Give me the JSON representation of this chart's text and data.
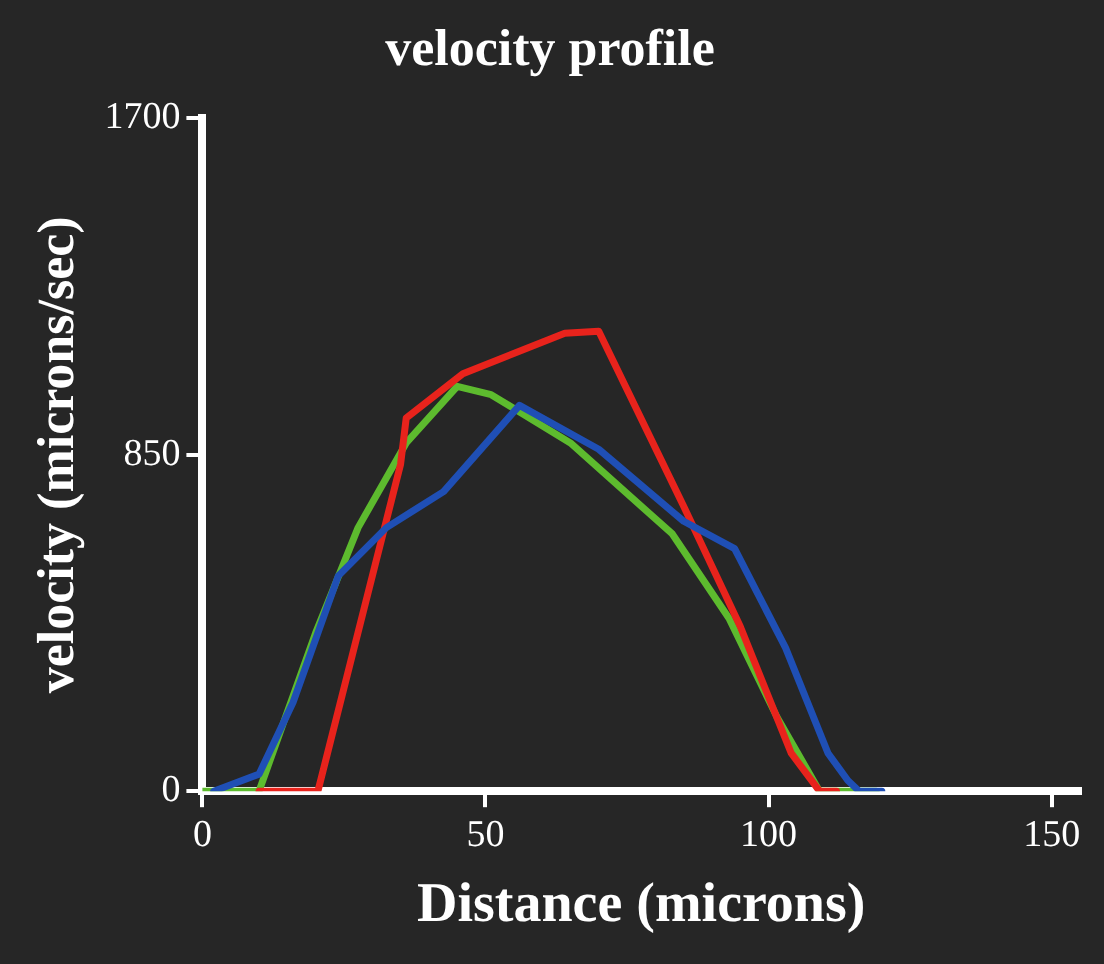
{
  "chart_data": {
    "type": "line",
    "title": "velocity profile",
    "xlabel": "Distance (microns)",
    "ylabel": "velocity (microns/sec)",
    "xlim": [
      0,
      155
    ],
    "xticks": [
      0,
      50,
      100,
      150
    ],
    "ylim": [
      0,
      1700
    ],
    "yticks": [
      0,
      850,
      1700
    ],
    "grid": false,
    "legend": false,
    "marker": "none",
    "line_style": "solid",
    "series": [
      {
        "color": "#1f4fb5",
        "x": [
          2,
          10,
          16,
          24,
          32.5,
          42.6,
          56,
          70,
          85,
          94,
          103,
          110.5,
          114,
          116,
          120
        ],
        "values": [
          0,
          43,
          224,
          544,
          666,
          757,
          975,
          864,
          682,
          613,
          362,
          96,
          27,
          0,
          0
        ]
      },
      {
        "color": "#e8231c",
        "x": [
          10,
          20.4,
          35,
          36,
          46,
          64,
          70,
          85,
          95,
          104,
          109,
          112
        ],
        "values": [
          0,
          0,
          826,
          943,
          1055,
          1157,
          1162,
          720,
          416,
          96,
          0,
          0
        ]
      },
      {
        "color": "#5dbb2e",
        "x": [
          0,
          10,
          20,
          27.5,
          36,
          45,
          51,
          65,
          83,
          93,
          101.5,
          109,
          119
        ],
        "values": [
          0,
          0,
          400,
          666,
          880,
          1023,
          1002,
          880,
          650,
          437,
          187,
          0,
          0
        ]
      }
    ]
  }
}
